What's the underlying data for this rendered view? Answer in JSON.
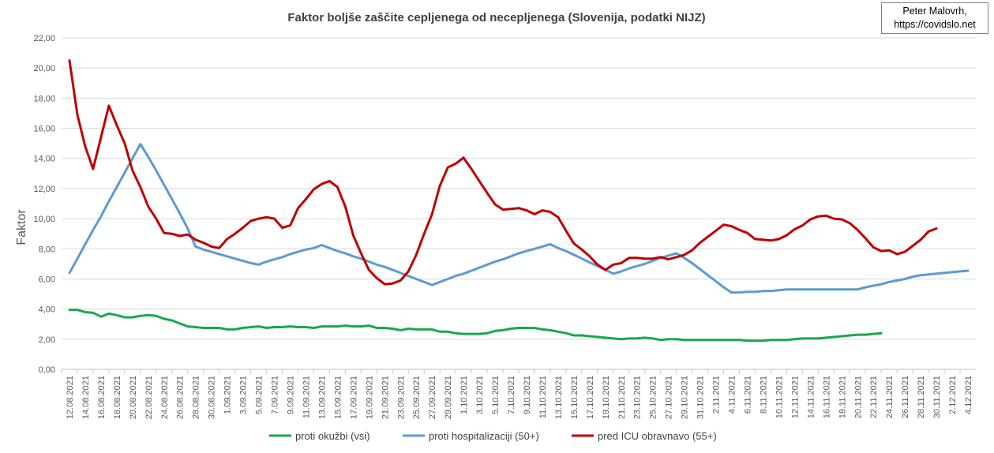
{
  "author": {
    "line1": "Peter Malovrh,",
    "line2": "https://covidslo.net"
  },
  "colors": {
    "okuzbi": "#1aa84b",
    "hospitalizacija": "#5b9bd5",
    "icu": "#c00000",
    "gridline": "#d9d9d9",
    "axis": "#bfbfbf"
  },
  "chart_data": {
    "type": "line",
    "title": "Faktor boljše zaščite cepljenega od necepljenega (Slovenija, podatki NIJZ)",
    "ylabel": "Faktor",
    "xlabel": "",
    "ylim": [
      0,
      22
    ],
    "y_ticks": [
      "0,00",
      "2,00",
      "4,00",
      "6,00",
      "8,00",
      "10,00",
      "12,00",
      "14,00",
      "16,00",
      "18,00",
      "20,00",
      "22,00"
    ],
    "x_tick_labels": [
      "12.08.2021",
      "14.08.2021",
      "16.08.2021",
      "18.08.2021",
      "20.08.2021",
      "22.08.2021",
      "24.08.2021",
      "26.08.2021",
      "28.08.2021",
      "30.08.2021",
      "1.09.2021",
      "3.09.2021",
      "5.09.2021",
      "7.09.2021",
      "9.09.2021",
      "11.09.2021",
      "13.09.2021",
      "15.09.2021",
      "17.09.2021",
      "19.09.2021",
      "21.09.2021",
      "23.09.2021",
      "25.09.2021",
      "27.09.2021",
      "29.09.2021",
      "1.10.2021",
      "3.10.2021",
      "5.10.2021",
      "7.10.2021",
      "9.10.2021",
      "11.10.2021",
      "13.10.2021",
      "15.10.2021",
      "17.10.2021",
      "19.10.2021",
      "21.10.2021",
      "23.10.2021",
      "25.10.2021",
      "27.10.2021",
      "29.10.2021",
      "31.10.2021",
      "2.11.2021",
      "4.11.2021",
      "6.11.2021",
      "8.11.2021",
      "10.11.2021",
      "12.11.2021",
      "14.11.2021",
      "16.11.2021",
      "18.11.2021",
      "20.11.2021",
      "22.11.2021",
      "24.11.2021",
      "26.11.2021",
      "28.11.2021",
      "30.11.2021",
      "2.12.2021",
      "4.12.2021"
    ],
    "grid": true,
    "legend_position": "bottom",
    "series": [
      {
        "name": "proti okužbi (vsi)",
        "color_key": "okuzbi",
        "values": [
          3.95,
          3.95,
          3.8,
          3.75,
          3.5,
          3.7,
          3.6,
          3.45,
          3.45,
          3.55,
          3.6,
          3.55,
          3.35,
          3.25,
          3.05,
          2.85,
          2.8,
          2.75,
          2.75,
          2.75,
          2.65,
          2.65,
          2.75,
          2.8,
          2.85,
          2.75,
          2.8,
          2.8,
          2.85,
          2.8,
          2.8,
          2.75,
          2.85,
          2.85,
          2.85,
          2.9,
          2.85,
          2.85,
          2.9,
          2.75,
          2.75,
          2.7,
          2.6,
          2.7,
          2.65,
          2.65,
          2.65,
          2.5,
          2.5,
          2.4,
          2.35,
          2.35,
          2.35,
          2.4,
          2.55,
          2.6,
          2.7,
          2.75,
          2.75,
          2.75,
          2.65,
          2.6,
          2.5,
          2.4,
          2.25,
          2.25,
          2.2,
          2.15,
          2.1,
          2.05,
          2.0,
          2.05,
          2.05,
          2.1,
          2.05,
          1.95,
          2.0,
          2.0,
          1.95,
          1.95,
          1.95,
          1.95,
          1.95,
          1.95,
          1.95,
          1.95,
          1.9,
          1.9,
          1.9,
          1.95,
          1.95,
          1.95,
          2.0,
          2.05,
          2.05,
          2.05,
          2.1,
          2.15,
          2.2,
          2.25,
          2.3,
          2.3,
          2.35,
          2.4
        ]
      },
      {
        "name": "proti hospitalizaciji (50+)",
        "color_key": "hospitalizacija",
        "values": [
          6.4,
          7.35,
          8.3,
          9.25,
          10.15,
          11.15,
          12.1,
          13.05,
          14.0,
          14.95,
          14.1,
          13.2,
          12.25,
          11.3,
          10.35,
          9.35,
          8.15,
          7.95,
          7.8,
          7.65,
          7.5,
          7.35,
          7.2,
          7.05,
          6.95,
          7.15,
          7.3,
          7.45,
          7.65,
          7.8,
          7.95,
          8.05,
          8.25,
          8.05,
          7.85,
          7.7,
          7.5,
          7.35,
          7.15,
          6.95,
          6.8,
          6.6,
          6.4,
          6.2,
          6.0,
          5.8,
          5.6,
          5.8,
          6.0,
          6.2,
          6.35,
          6.55,
          6.75,
          6.95,
          7.15,
          7.3,
          7.5,
          7.7,
          7.85,
          8.0,
          8.15,
          8.3,
          8.05,
          7.85,
          7.6,
          7.35,
          7.1,
          6.85,
          6.6,
          6.35,
          6.5,
          6.7,
          6.85,
          7.0,
          7.2,
          7.4,
          7.55,
          7.7,
          7.4,
          7.05,
          6.65,
          6.25,
          5.85,
          5.45,
          5.1,
          5.1,
          5.15,
          5.15,
          5.2,
          5.2,
          5.25,
          5.3,
          5.3,
          5.3,
          5.3,
          5.3,
          5.3,
          5.3,
          5.3,
          5.3,
          5.3,
          5.45,
          5.55,
          5.65,
          5.8,
          5.9,
          6.0,
          6.15,
          6.25,
          6.3,
          6.35,
          6.4,
          6.45,
          6.5,
          6.55
        ]
      },
      {
        "name": "pred ICU obravnavo (55+)",
        "color_key": "icu",
        "values": [
          20.5,
          16.9,
          14.8,
          13.3,
          15.4,
          17.5,
          16.2,
          15.0,
          13.2,
          12.1,
          10.8,
          10.0,
          9.05,
          9.0,
          8.85,
          8.95,
          8.6,
          8.4,
          8.15,
          8.05,
          8.65,
          9.0,
          9.4,
          9.85,
          10.0,
          10.1,
          10.0,
          9.4,
          9.55,
          10.7,
          11.3,
          11.95,
          12.3,
          12.5,
          12.1,
          10.8,
          8.9,
          7.7,
          6.6,
          6.05,
          5.65,
          5.7,
          5.9,
          6.5,
          7.6,
          9.0,
          10.3,
          12.2,
          13.4,
          13.65,
          14.05,
          13.3,
          12.5,
          11.7,
          10.95,
          10.6,
          10.65,
          10.7,
          10.55,
          10.3,
          10.55,
          10.45,
          10.1,
          9.2,
          8.35,
          7.95,
          7.5,
          6.95,
          6.6,
          6.95,
          7.05,
          7.4,
          7.4,
          7.35,
          7.35,
          7.45,
          7.3,
          7.45,
          7.6,
          7.9,
          8.4,
          8.8,
          9.2,
          9.6,
          9.5,
          9.25,
          9.05,
          8.65,
          8.6,
          8.55,
          8.65,
          8.9,
          9.3,
          9.55,
          9.95,
          10.15,
          10.2,
          10.0,
          9.95,
          9.7,
          9.25,
          8.7,
          8.1,
          7.85,
          7.9,
          7.65,
          7.8,
          8.2,
          8.6,
          9.15,
          9.35
        ]
      }
    ]
  }
}
